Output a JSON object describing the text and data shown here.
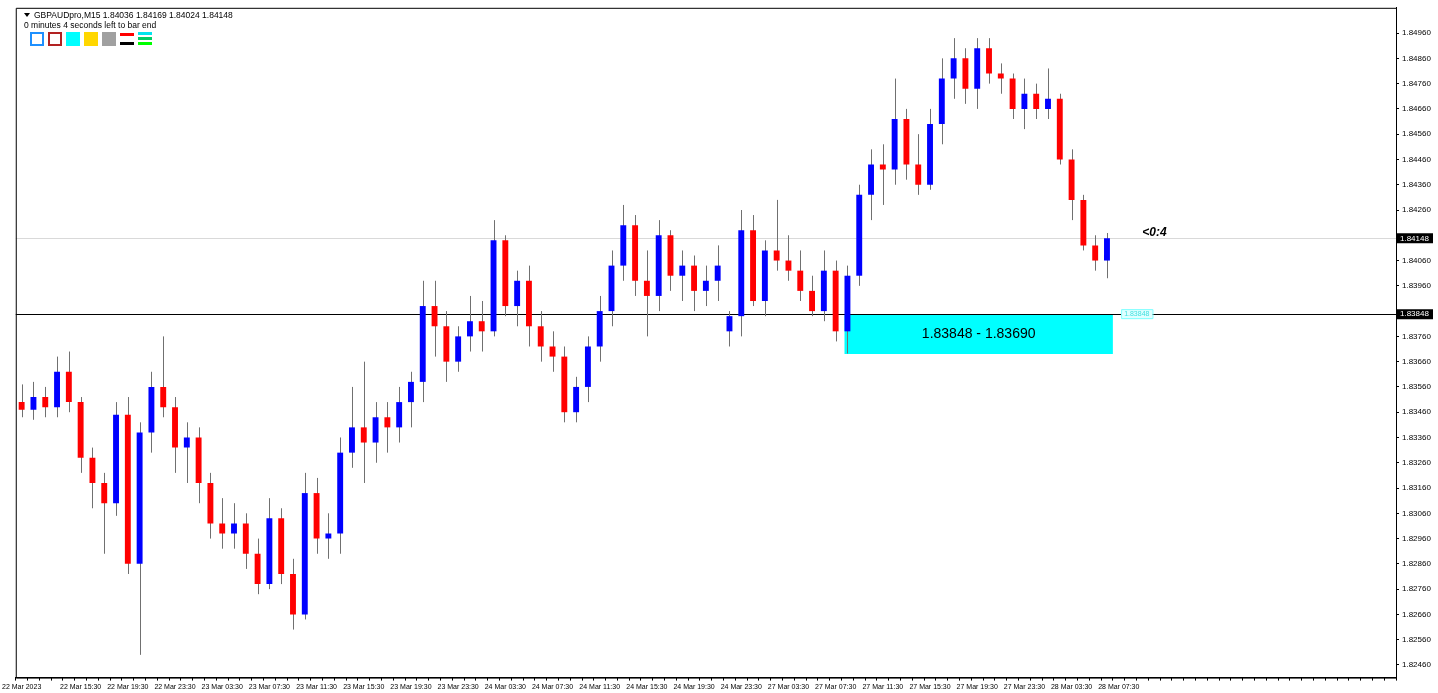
{
  "chart_data": {
    "type": "candlestick",
    "title": "GBPAUDpro,M15  1.84036 1.84169 1.84024 1.84148",
    "subtitle": "0 minutes 4 seconds left to bar end",
    "categories": [
      "22 Mar 2023",
      null,
      null,
      null,
      null,
      "22 Mar 15:30",
      null,
      null,
      null,
      "22 Mar 19:30",
      null,
      null,
      null,
      "22 Mar 23:30",
      null,
      null,
      null,
      "23 Mar 03:30",
      null,
      null,
      null,
      "23 Mar 07:30",
      null,
      null,
      null,
      "23 Mar 11:30",
      null,
      null,
      null,
      "23 Mar 15:30",
      null,
      null,
      null,
      "23 Mar 19:30",
      null,
      null,
      null,
      "23 Mar 23:30",
      null,
      null,
      null,
      "24 Mar 03:30",
      null,
      null,
      null,
      "24 Mar 07:30",
      null,
      null,
      null,
      "24 Mar 11:30",
      null,
      null,
      null,
      "24 Mar 15:30",
      null,
      null,
      null,
      "24 Mar 19:30",
      null,
      null,
      null,
      "24 Mar 23:30",
      null,
      null,
      null,
      "27 Mar 03:30",
      null,
      null,
      null,
      "27 Mar 07:30",
      null,
      null,
      null,
      "27 Mar 11:30",
      null,
      null,
      null,
      "27 Mar 15:30",
      null,
      null,
      null,
      "27 Mar 19:30",
      null,
      null,
      null,
      "27 Mar 23:30",
      null,
      null,
      null,
      "28 Mar 03:30",
      null,
      null,
      null,
      "28 Mar 07:30",
      null,
      null,
      null,
      null,
      null,
      null,
      null,
      null,
      null,
      null,
      null,
      null,
      null,
      null,
      null,
      null,
      null,
      null,
      null,
      null,
      null,
      null,
      null
    ],
    "ohlc": [
      [
        1.835,
        1.8357,
        1.8344,
        1.8347
      ],
      [
        1.8347,
        1.8358,
        1.8343,
        1.8352
      ],
      [
        1.8352,
        1.8356,
        1.8344,
        1.8348
      ],
      [
        1.8348,
        1.8368,
        1.8344,
        1.8362
      ],
      [
        1.8362,
        1.837,
        1.8346,
        1.835
      ],
      [
        1.835,
        1.8352,
        1.8322,
        1.8328
      ],
      [
        1.8328,
        1.8332,
        1.8308,
        1.8318
      ],
      [
        1.8318,
        1.8322,
        1.829,
        1.831
      ],
      [
        1.831,
        1.835,
        1.8305,
        1.8345
      ],
      [
        1.8345,
        1.8352,
        1.8282,
        1.8286
      ],
      [
        1.8286,
        1.8342,
        1.825,
        1.8338
      ],
      [
        1.8338,
        1.8362,
        1.833,
        1.8356
      ],
      [
        1.8356,
        1.8376,
        1.8344,
        1.8348
      ],
      [
        1.8348,
        1.8352,
        1.8322,
        1.8332
      ],
      [
        1.8332,
        1.8342,
        1.8318,
        1.8336
      ],
      [
        1.8336,
        1.834,
        1.831,
        1.8318
      ],
      [
        1.8318,
        1.8322,
        1.8296,
        1.8302
      ],
      [
        1.8302,
        1.8312,
        1.8292,
        1.8298
      ],
      [
        1.8298,
        1.831,
        1.8292,
        1.8302
      ],
      [
        1.8302,
        1.8306,
        1.8284,
        1.829
      ],
      [
        1.829,
        1.8296,
        1.8274,
        1.8278
      ],
      [
        1.8278,
        1.8312,
        1.8276,
        1.8304
      ],
      [
        1.8304,
        1.8308,
        1.8278,
        1.8282
      ],
      [
        1.8282,
        1.8288,
        1.826,
        1.8266
      ],
      [
        1.8266,
        1.8322,
        1.8264,
        1.8314
      ],
      [
        1.8314,
        1.832,
        1.829,
        1.8296
      ],
      [
        1.8296,
        1.8306,
        1.8288,
        1.8298
      ],
      [
        1.8298,
        1.8336,
        1.829,
        1.833
      ],
      [
        1.833,
        1.8356,
        1.8324,
        1.834
      ],
      [
        1.834,
        1.8366,
        1.8318,
        1.8334
      ],
      [
        1.8334,
        1.835,
        1.8326,
        1.8344
      ],
      [
        1.8344,
        1.835,
        1.833,
        1.834
      ],
      [
        1.834,
        1.8356,
        1.8334,
        1.835
      ],
      [
        1.835,
        1.8362,
        1.834,
        1.8358
      ],
      [
        1.8358,
        1.8398,
        1.835,
        1.8388
      ],
      [
        1.8388,
        1.8398,
        1.8368,
        1.838
      ],
      [
        1.838,
        1.8386,
        1.8358,
        1.8366
      ],
      [
        1.8366,
        1.838,
        1.8362,
        1.8376
      ],
      [
        1.8376,
        1.8392,
        1.837,
        1.8382
      ],
      [
        1.8382,
        1.839,
        1.837,
        1.8378
      ],
      [
        1.8378,
        1.8422,
        1.8376,
        1.8414
      ],
      [
        1.8414,
        1.8416,
        1.8384,
        1.8388
      ],
      [
        1.8388,
        1.8402,
        1.838,
        1.8398
      ],
      [
        1.8398,
        1.8404,
        1.8372,
        1.838
      ],
      [
        1.838,
        1.8386,
        1.8366,
        1.8372
      ],
      [
        1.8372,
        1.8378,
        1.8362,
        1.8368
      ],
      [
        1.8368,
        1.8372,
        1.8342,
        1.8346
      ],
      [
        1.8346,
        1.836,
        1.8342,
        1.8356
      ],
      [
        1.8356,
        1.8376,
        1.835,
        1.8372
      ],
      [
        1.8372,
        1.8392,
        1.8366,
        1.8386
      ],
      [
        1.8386,
        1.841,
        1.838,
        1.8404
      ],
      [
        1.8404,
        1.8428,
        1.8398,
        1.842
      ],
      [
        1.842,
        1.8424,
        1.8392,
        1.8398
      ],
      [
        1.8398,
        1.841,
        1.8376,
        1.8392
      ],
      [
        1.8392,
        1.8422,
        1.8386,
        1.8416
      ],
      [
        1.8416,
        1.8418,
        1.8394,
        1.84
      ],
      [
        1.84,
        1.841,
        1.839,
        1.8404
      ],
      [
        1.8404,
        1.8408,
        1.8386,
        1.8394
      ],
      [
        1.8394,
        1.8404,
        1.8388,
        1.8398
      ],
      [
        1.8398,
        1.8412,
        1.839,
        1.8404
      ],
      [
        1.8378,
        1.8386,
        1.8372,
        1.8384
      ],
      [
        1.8384,
        1.8426,
        1.8376,
        1.8418
      ],
      [
        1.8418,
        1.8424,
        1.8388,
        1.839
      ],
      [
        1.839,
        1.8414,
        1.8384,
        1.841
      ],
      [
        1.841,
        1.843,
        1.8402,
        1.8406
      ],
      [
        1.8406,
        1.8416,
        1.8398,
        1.8402
      ],
      [
        1.8402,
        1.841,
        1.839,
        1.8394
      ],
      [
        1.8394,
        1.84,
        1.8384,
        1.8386
      ],
      [
        1.8386,
        1.841,
        1.8382,
        1.8402
      ],
      [
        1.8402,
        1.8406,
        1.8374,
        1.8378
      ],
      [
        1.8378,
        1.8404,
        1.83692,
        1.84
      ],
      [
        1.84,
        1.8436,
        1.8396,
        1.8432
      ],
      [
        1.8432,
        1.845,
        1.8422,
        1.8444
      ],
      [
        1.8444,
        1.8452,
        1.8428,
        1.8442
      ],
      [
        1.8442,
        1.8478,
        1.8436,
        1.8462
      ],
      [
        1.8462,
        1.8466,
        1.8438,
        1.8444
      ],
      [
        1.8444,
        1.8456,
        1.8432,
        1.8436
      ],
      [
        1.8436,
        1.8466,
        1.8434,
        1.846
      ],
      [
        1.846,
        1.8486,
        1.8452,
        1.8478
      ],
      [
        1.8478,
        1.8494,
        1.847,
        1.8486
      ],
      [
        1.8486,
        1.849,
        1.8468,
        1.8474
      ],
      [
        1.8474,
        1.8494,
        1.8466,
        1.849
      ],
      [
        1.849,
        1.8494,
        1.8476,
        1.848
      ],
      [
        1.848,
        1.8484,
        1.8472,
        1.8478
      ],
      [
        1.8478,
        1.848,
        1.8462,
        1.8466
      ],
      [
        1.8466,
        1.8478,
        1.8458,
        1.8472
      ],
      [
        1.8472,
        1.8476,
        1.8462,
        1.8466
      ],
      [
        1.8466,
        1.8482,
        1.8462,
        1.847
      ],
      [
        1.847,
        1.8472,
        1.8444,
        1.8446
      ],
      [
        1.8446,
        1.845,
        1.8422,
        1.843
      ],
      [
        1.843,
        1.8432,
        1.841,
        1.8412
      ],
      [
        1.8412,
        1.8416,
        1.8402,
        1.8406
      ],
      [
        1.8406,
        1.84169,
        1.8399,
        1.84148
      ],
      null,
      null,
      null,
      null,
      null,
      null,
      null,
      null,
      null,
      null,
      null,
      null,
      null,
      null,
      null,
      null,
      null,
      null,
      null,
      null,
      null,
      null,
      null,
      null
    ],
    "colors": [
      "#ff0000",
      "#0000ff",
      "#ff0000",
      "#0000ff",
      "#ff0000",
      "#ff0000",
      "#ff0000",
      "#ff0000",
      "#0000ff",
      "#ff0000",
      "#0000ff",
      "#0000ff",
      "#ff0000",
      "#ff0000",
      "#0000ff",
      "#ff0000",
      "#ff0000",
      "#ff0000",
      "#0000ff",
      "#ff0000",
      "#ff0000",
      "#0000ff",
      "#ff0000",
      "#ff0000",
      "#0000ff",
      "#ff0000",
      "#0000ff",
      "#0000ff",
      "#0000ff",
      "#ff0000",
      "#0000ff",
      "#ff0000",
      "#0000ff",
      "#0000ff",
      "#0000ff",
      "#ff0000",
      "#ff0000",
      "#0000ff",
      "#0000ff",
      "#ff0000",
      "#0000ff",
      "#ff0000",
      "#0000ff",
      "#ff0000",
      "#ff0000",
      "#ff0000",
      "#ff0000",
      "#0000ff",
      "#0000ff",
      "#0000ff",
      "#0000ff",
      "#0000ff",
      "#ff0000",
      "#ff0000",
      "#0000ff",
      "#ff0000",
      "#0000ff",
      "#ff0000",
      "#0000ff",
      "#0000ff",
      "#0000ff",
      "#0000ff",
      "#ff0000",
      "#0000ff",
      "#ff0000",
      "#ff0000",
      "#ff0000",
      "#ff0000",
      "#0000ff",
      "#ff0000",
      "#0000ff",
      "#0000ff",
      "#0000ff",
      "#ff0000",
      "#0000ff",
      "#ff0000",
      "#ff0000",
      "#0000ff",
      "#0000ff",
      "#0000ff",
      "#ff0000",
      "#0000ff",
      "#ff0000",
      "#ff0000",
      "#ff0000",
      "#0000ff",
      "#ff0000",
      "#0000ff",
      "#ff0000",
      "#ff0000",
      "#ff0000",
      "#ff0000",
      "#0000ff",
      null,
      null,
      null,
      null,
      null,
      null,
      null,
      null,
      null,
      null,
      null,
      null,
      null,
      null,
      null,
      null,
      null,
      null,
      null,
      null,
      null,
      null,
      null,
      null
    ],
    "ylim": [
      1.8241,
      1.8506
    ],
    "yticks": [
      {
        "value": 1.8246,
        "label": "1.82460"
      },
      {
        "value": 1.8256,
        "label": "1.82560"
      },
      {
        "value": 1.8266,
        "label": "1.82660"
      },
      {
        "value": 1.8276,
        "label": "1.82760"
      },
      {
        "value": 1.8286,
        "label": "1.82860"
      },
      {
        "value": 1.8296,
        "label": "1.82960"
      },
      {
        "value": 1.8306,
        "label": "1.83060"
      },
      {
        "value": 1.8316,
        "label": "1.83160"
      },
      {
        "value": 1.8326,
        "label": "1.83260"
      },
      {
        "value": 1.8336,
        "label": "1.83360"
      },
      {
        "value": 1.8346,
        "label": "1.83460"
      },
      {
        "value": 1.8356,
        "label": "1.83560"
      },
      {
        "value": 1.8366,
        "label": "1.83660"
      },
      {
        "value": 1.8376,
        "label": "1.83760"
      },
      {
        "value": 1.8386,
        "label": null
      },
      {
        "value": 1.8396,
        "label": "1.83960"
      },
      {
        "value": 1.8406,
        "label": "1.84060"
      },
      {
        "value": 1.8416,
        "label": null
      },
      {
        "value": 1.8426,
        "label": "1.84260"
      },
      {
        "value": 1.8436,
        "label": "1.84360"
      },
      {
        "value": 1.8446,
        "label": "1.84460"
      },
      {
        "value": 1.8456,
        "label": "1.84560"
      },
      {
        "value": 1.8466,
        "label": "1.84660"
      },
      {
        "value": 1.8476,
        "label": "1.84760"
      },
      {
        "value": 1.8486,
        "label": "1.84860"
      },
      {
        "value": 1.8496,
        "label": "1.84960"
      }
    ],
    "ref_lines": [
      {
        "axis": "y",
        "value": 1.84148,
        "label": "1.84148",
        "color": "#d9d9d9"
      },
      {
        "axis": "y",
        "value": 1.83848,
        "label": "1.83848",
        "color": "#000000"
      }
    ],
    "bands": [
      {
        "axis": "y",
        "from": 1.8369,
        "to": 1.83848,
        "label": "1.83848 - 1.83690",
        "color": "#00ffff"
      }
    ],
    "annotations": [
      "<0:4",
      {
        "text": "1.83848",
        "y": 1.83848
      }
    ]
  }
}
